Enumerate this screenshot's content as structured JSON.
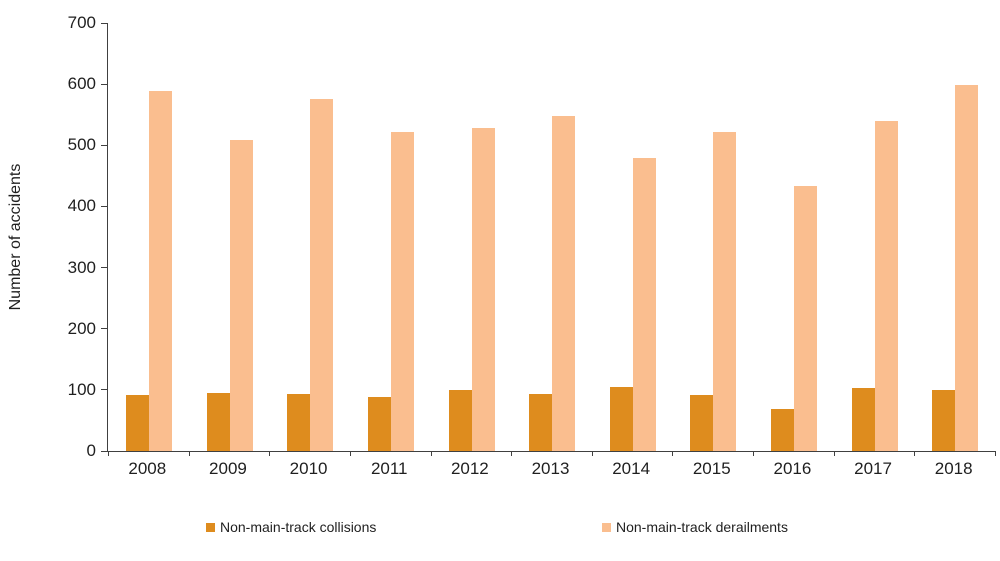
{
  "chart_data": {
    "type": "bar",
    "title": "",
    "ylabel": "Number of accidents",
    "xlabel": "",
    "categories": [
      "2008",
      "2009",
      "2010",
      "2011",
      "2012",
      "2013",
      "2014",
      "2015",
      "2016",
      "2017",
      "2018"
    ],
    "series": [
      {
        "name": "Non-main-track collisions",
        "color": "#DE8C1E",
        "values": [
          92,
          95,
          93,
          89,
          100,
          93,
          105,
          92,
          69,
          103,
          100
        ]
      },
      {
        "name": "Non-main-track derailments",
        "color": "#FABE8F",
        "values": [
          588,
          509,
          575,
          522,
          529,
          548,
          480,
          522,
          434,
          540,
          599
        ]
      }
    ],
    "ylim": [
      0,
      700
    ],
    "yticks": [
      "0",
      "100",
      "200",
      "300",
      "400",
      "500",
      "600",
      "700"
    ],
    "grid": false,
    "legend_position": "bottom",
    "axis_color": "#404040",
    "text_color": "#1f1f1f"
  }
}
